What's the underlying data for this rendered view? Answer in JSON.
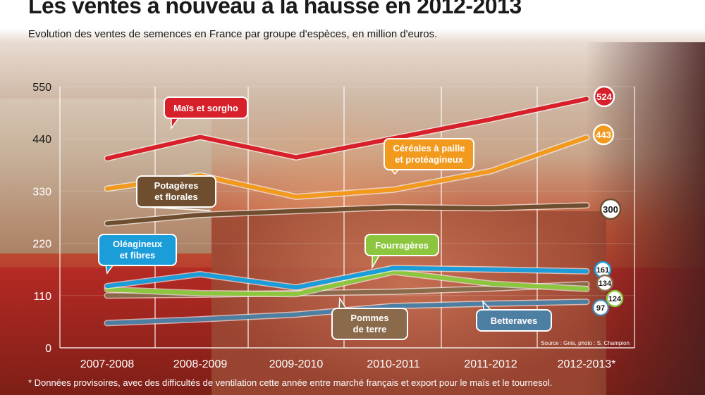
{
  "title": "Les ventes à nouveau à la hausse en 2012-2013",
  "subtitle": "Evolution des ventes de semences en France par groupe d'espèces, en million d'euros.",
  "footnote": "* Données provisoires, avec des difficultés de ventilation cette année entre marché français et export pour le maïs et le tournesol.",
  "source": "Source : Gnis, photo : S. Champion",
  "chart_data": {
    "type": "line",
    "title": "Les ventes à nouveau à la hausse en 2012-2013",
    "subtitle": "Evolution des ventes de semences en France par groupe d'espèces, en million d'euros.",
    "categories": [
      "2007-2008",
      "2008-2009",
      "2009-2010",
      "2010-2011",
      "2011-2012",
      "2012-2013*"
    ],
    "yticks": [
      0,
      110,
      220,
      330,
      440,
      550
    ],
    "ylim": [
      0,
      550
    ],
    "grid": "vertical",
    "series": [
      {
        "name": "Maïs et sorgho",
        "values": [
          399,
          444,
          401,
          441,
          481,
          524
        ],
        "end_label": "524",
        "color": "#d7202a"
      },
      {
        "name": "Céréales à paille et protéagineux",
        "values": [
          335,
          363,
          318,
          333,
          372,
          443
        ],
        "end_label": "443",
        "color": "#f29a1d"
      },
      {
        "name": "Potagères et florales",
        "values": [
          262,
          280,
          288,
          296,
          294,
          300
        ],
        "end_label": "300",
        "color": "#6e4e2f"
      },
      {
        "name": "Oléagineux et fibres",
        "values": [
          130,
          155,
          127,
          168,
          165,
          161
        ],
        "end_label": "161",
        "color": "#1b9dd9"
      },
      {
        "name": "Pommes de terre",
        "values": [
          110,
          112,
          115,
          118,
          125,
          134
        ],
        "end_label": "134",
        "color": "#8a6a4a"
      },
      {
        "name": "Fourragères",
        "values": [
          123,
          115,
          113,
          160,
          135,
          124
        ],
        "end_label": "124",
        "color": "#8cc63e"
      },
      {
        "name": "Betteraves",
        "values": [
          52,
          60,
          70,
          88,
          93,
          97
        ],
        "end_label": "97",
        "color": "#4d7fa3"
      }
    ]
  }
}
